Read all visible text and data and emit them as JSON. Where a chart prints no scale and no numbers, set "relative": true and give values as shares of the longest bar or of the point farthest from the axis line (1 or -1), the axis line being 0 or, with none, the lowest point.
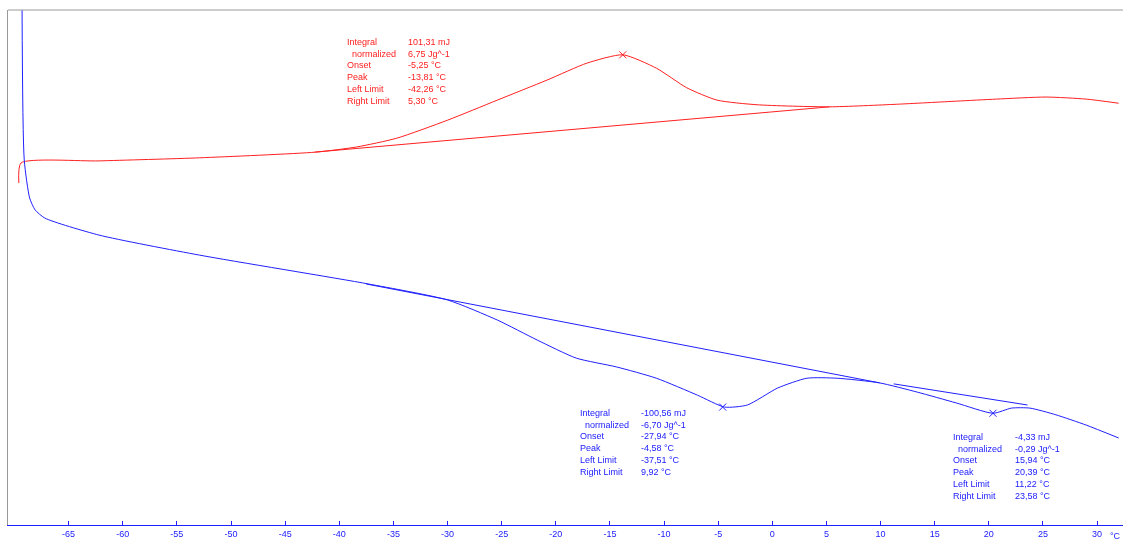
{
  "chart_data": {
    "type": "line",
    "relative": true,
    "xlabel": "°C",
    "xlim": [
      -70.6,
      32.4
    ],
    "xticks": [
      -65,
      -60,
      -55,
      -50,
      -45,
      -40,
      -35,
      -30,
      -25,
      -20,
      -15,
      -10,
      -5,
      0,
      5,
      10,
      15,
      20,
      25,
      30
    ],
    "tick_labels": "x",
    "marker": "none",
    "line_style": "solid",
    "series": [
      {
        "color": "#ff2020",
        "x": [
          -69.6,
          -69.4,
          -62.2,
          -52.9,
          -42.2,
          -38.4,
          -34.7,
          -30.0,
          -25.4,
          -20.8,
          -17.1,
          -13.8,
          -10.7,
          -7.9,
          -5.1,
          -1.4,
          5.3,
          11.5,
          17.0,
          20.7,
          25.3,
          29.0,
          32.0
        ],
        "values": [
          0.664,
          0.703,
          0.707,
          0.713,
          0.724,
          0.734,
          0.751,
          0.786,
          0.825,
          0.864,
          0.897,
          0.913,
          0.887,
          0.849,
          0.825,
          0.816,
          0.812,
          0.817,
          0.823,
          0.827,
          0.831,
          0.827,
          0.819
        ]
      },
      {
        "color": "#2020ff",
        "x": [
          -69.3,
          -69.1,
          -68.6,
          -68.1,
          -67.2,
          -62.2,
          -52.9,
          -37.3,
          -30.0,
          -25.4,
          -21.7,
          -18.1,
          -14.4,
          -10.7,
          -6.9,
          -4.4,
          -2.3,
          0.5,
          3.2,
          6.0,
          9.9,
          13.4,
          17.0,
          20.4,
          22.1,
          23.8,
          26.2,
          29.0,
          32.0
        ],
        "values": [
          1.0,
          0.709,
          0.635,
          0.612,
          0.596,
          0.563,
          0.524,
          0.468,
          0.437,
          0.398,
          0.359,
          0.324,
          0.307,
          0.285,
          0.252,
          0.229,
          0.233,
          0.266,
          0.285,
          0.285,
          0.276,
          0.258,
          0.237,
          0.217,
          0.227,
          0.227,
          0.214,
          0.194,
          0.169
        ]
      },
      {
        "color": "#ff2020",
        "x": [
          -42.26,
          5.3
        ],
        "values": [
          0.724,
          0.812
        ]
      },
      {
        "color": "#2020ff",
        "x": [
          -37.51,
          9.92
        ],
        "values": [
          0.468,
          0.276
        ]
      },
      {
        "color": "#2020ff",
        "x": [
          11.22,
          23.58
        ],
        "values": [
          0.274,
          0.233
        ]
      },
      {
        "type": "scatter",
        "marker": "cross",
        "color": "#ff2020",
        "x": [
          -13.81
        ],
        "values": [
          0.913
        ]
      },
      {
        "type": "scatter",
        "marker": "cross",
        "color": "#2020ff",
        "x": [
          -4.58,
          20.39
        ],
        "values": [
          0.229,
          0.217
        ]
      }
    ],
    "annotations": [
      "Integral\n  normalized\nOnset\nPeak\nLeft Limit\nRight Limit",
      "101,31 mJ\n6,75 Jg^-1\n-5,25 °C\n-13,81 °C\n-42,26 °C\n5,30 °C",
      "Integral\n  normalized\nOnset\nPeak\nLeft Limit\nRight Limit",
      "-100,56 mJ\n-6,70 Jg^-1\n-27,94 °C\n-4,58 °C\n-37,51 °C\n9,92 °C",
      "Integral\n  normalized\nOnset\nPeak\nLeft Limit\nRight Limit",
      "-4,33 mJ\n-0,29 Jg^-1\n15,94 °C\n20,39 °C\n11,22 °C\n23,58 °C"
    ]
  }
}
